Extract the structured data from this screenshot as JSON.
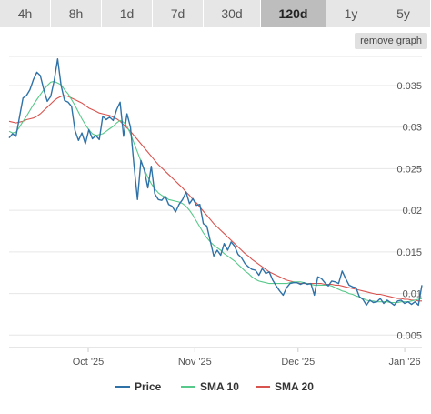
{
  "tabs": [
    {
      "label": "4h",
      "active": false
    },
    {
      "label": "8h",
      "active": false
    },
    {
      "label": "1d",
      "active": false
    },
    {
      "label": "7d",
      "active": false
    },
    {
      "label": "30d",
      "active": false
    },
    {
      "label": "120d",
      "active": true
    },
    {
      "label": "1y",
      "active": false
    },
    {
      "label": "5y",
      "active": false
    }
  ],
  "remove_graph_label": "remove graph",
  "chart_data": {
    "type": "line",
    "x_start": "2025-09-08",
    "x_end": "2026-01-06",
    "x_ticks": [
      {
        "label": "Oct '25",
        "date": "2025-10-01"
      },
      {
        "label": "Nov '25",
        "date": "2025-11-01"
      },
      {
        "label": "Dec '25",
        "date": "2025-12-01"
      },
      {
        "label": "Jan '26",
        "date": "2026-01-01"
      }
    ],
    "ylim": [
      0.0035,
      0.0385
    ],
    "y_ticks": [
      {
        "label": "0.035",
        "value": 0.035
      },
      {
        "label": "0.03",
        "value": 0.03
      },
      {
        "label": "0.025",
        "value": 0.025
      },
      {
        "label": "0.02",
        "value": 0.02
      },
      {
        "label": "0.015",
        "value": 0.015
      },
      {
        "label": "0.01",
        "value": 0.01
      },
      {
        "label": "0.005",
        "value": 0.005
      }
    ],
    "grid": true,
    "legend_position": "bottom",
    "series": [
      {
        "name": "Price",
        "color": "#2f72a8",
        "values": [
          0.0287,
          0.0292,
          0.0289,
          0.0312,
          0.0335,
          0.0338,
          0.0345,
          0.0357,
          0.0366,
          0.0362,
          0.0345,
          0.0331,
          0.0337,
          0.0356,
          0.0382,
          0.035,
          0.0332,
          0.033,
          0.0325,
          0.0296,
          0.0284,
          0.0293,
          0.028,
          0.0297,
          0.0286,
          0.029,
          0.0285,
          0.0313,
          0.0309,
          0.0312,
          0.0308,
          0.0321,
          0.033,
          0.0289,
          0.0316,
          0.03,
          0.0255,
          0.0213,
          0.026,
          0.0248,
          0.0227,
          0.0253,
          0.022,
          0.0213,
          0.0212,
          0.0217,
          0.0207,
          0.0205,
          0.0198,
          0.0207,
          0.0213,
          0.0222,
          0.0208,
          0.0214,
          0.0206,
          0.0207,
          0.0184,
          0.0181,
          0.0163,
          0.0145,
          0.0152,
          0.0146,
          0.016,
          0.0152,
          0.0162,
          0.0157,
          0.0147,
          0.0143,
          0.0136,
          0.0132,
          0.0129,
          0.0128,
          0.0122,
          0.013,
          0.0124,
          0.0126,
          0.0116,
          0.0109,
          0.0103,
          0.0098,
          0.0107,
          0.0112,
          0.0113,
          0.0113,
          0.0111,
          0.0113,
          0.0111,
          0.0112,
          0.0098,
          0.012,
          0.0118,
          0.0113,
          0.0109,
          0.0115,
          0.0114,
          0.0112,
          0.0127,
          0.0118,
          0.011,
          0.0108,
          0.0107,
          0.0096,
          0.0093,
          0.0086,
          0.0092,
          0.0089,
          0.009,
          0.0094,
          0.0088,
          0.0092,
          0.0089,
          0.0086,
          0.0091,
          0.0092,
          0.0088,
          0.009,
          0.0087,
          0.009,
          0.0086,
          0.011
        ]
      },
      {
        "name": "SMA 10",
        "color": "#57c98a",
        "values": [
          0.0295,
          0.0293,
          0.0294,
          0.03,
          0.0307,
          0.0313,
          0.032,
          0.0327,
          0.0333,
          0.0339,
          0.0345,
          0.035,
          0.0354,
          0.0355,
          0.0353,
          0.0351,
          0.0345,
          0.034,
          0.0333,
          0.0326,
          0.0318,
          0.031,
          0.0303,
          0.0297,
          0.0292,
          0.029,
          0.0291,
          0.0292,
          0.0295,
          0.0298,
          0.0301,
          0.0305,
          0.0308,
          0.0306,
          0.0301,
          0.0292,
          0.0281,
          0.027,
          0.0259,
          0.0249,
          0.024,
          0.0232,
          0.0226,
          0.0221,
          0.0218,
          0.0216,
          0.0213,
          0.0212,
          0.0211,
          0.021,
          0.0208,
          0.0205,
          0.02,
          0.0194,
          0.0187,
          0.018,
          0.0173,
          0.0167,
          0.0162,
          0.0158,
          0.0155,
          0.0152,
          0.0148,
          0.0145,
          0.0142,
          0.0139,
          0.0135,
          0.0131,
          0.0127,
          0.0124,
          0.012,
          0.0117,
          0.0115,
          0.0114,
          0.0113,
          0.0112,
          0.0112,
          0.0112,
          0.0112,
          0.0112,
          0.0112,
          0.0113,
          0.0114,
          0.0114,
          0.0114,
          0.0113,
          0.0112,
          0.0111,
          0.011,
          0.011,
          0.011,
          0.011,
          0.011,
          0.0109,
          0.0107,
          0.0105,
          0.0103,
          0.0102,
          0.01,
          0.0099,
          0.0097,
          0.0096,
          0.0094,
          0.0092,
          0.0091,
          0.0091,
          0.009,
          0.009,
          0.009,
          0.009,
          0.0089,
          0.0089,
          0.0089,
          0.009,
          0.009,
          0.009,
          0.0091,
          0.0092,
          0.0093,
          0.0094
        ]
      },
      {
        "name": "SMA 20",
        "color": "#d9534f",
        "values": [
          0.0307,
          0.0306,
          0.0305,
          0.0306,
          0.0307,
          0.0309,
          0.031,
          0.0311,
          0.0313,
          0.0316,
          0.032,
          0.0324,
          0.0328,
          0.0332,
          0.0335,
          0.0337,
          0.0338,
          0.0337,
          0.0335,
          0.0333,
          0.0331,
          0.0329,
          0.0326,
          0.0323,
          0.0321,
          0.0319,
          0.0317,
          0.0316,
          0.0315,
          0.0314,
          0.0312,
          0.031,
          0.0307,
          0.0303,
          0.0299,
          0.0295,
          0.029,
          0.0285,
          0.028,
          0.0275,
          0.027,
          0.0265,
          0.026,
          0.0255,
          0.0251,
          0.0247,
          0.0243,
          0.0239,
          0.0235,
          0.0231,
          0.0227,
          0.0222,
          0.0218,
          0.0213,
          0.0209,
          0.0204,
          0.0199,
          0.0194,
          0.0189,
          0.0184,
          0.018,
          0.0176,
          0.0172,
          0.0168,
          0.0164,
          0.016,
          0.0156,
          0.0152,
          0.0148,
          0.0145,
          0.0141,
          0.0138,
          0.0135,
          0.0132,
          0.0129,
          0.0126,
          0.0124,
          0.0122,
          0.012,
          0.0118,
          0.0116,
          0.0115,
          0.0114,
          0.0113,
          0.0112,
          0.0112,
          0.0112,
          0.0112,
          0.0112,
          0.0112,
          0.0112,
          0.0111,
          0.0111,
          0.0111,
          0.011,
          0.011,
          0.0109,
          0.0108,
          0.0107,
          0.0106,
          0.0105,
          0.0104,
          0.0103,
          0.0102,
          0.0101,
          0.01,
          0.0099,
          0.0099,
          0.0098,
          0.0097,
          0.0096,
          0.0095,
          0.0094,
          0.0094,
          0.0093,
          0.0093,
          0.0092,
          0.0092,
          0.0091,
          0.0091
        ]
      }
    ]
  }
}
